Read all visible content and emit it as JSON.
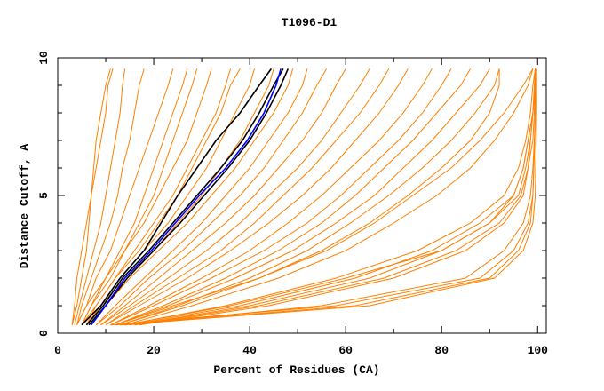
{
  "chart_data": {
    "type": "line",
    "title": "T1096-D1",
    "xlabel": "Percent of Residues (CA)",
    "ylabel": "Distance Cutoff, A",
    "xlim": [
      0,
      101.8
    ],
    "ylim": [
      0,
      10
    ],
    "xticks": [
      "0",
      "20",
      "40",
      "60",
      "80",
      "100"
    ],
    "yticks": [
      "0",
      "5",
      "10"
    ],
    "grid": false,
    "y_levels": [
      0.3,
      1,
      2,
      3,
      4,
      5,
      6,
      7,
      8,
      9,
      9.6
    ],
    "colors": {
      "other": "#ff8000",
      "highlight_black": "#000000",
      "highlight_blue": "#0000ff"
    },
    "series": [
      {
        "group": "other",
        "x": [
          3,
          3.5,
          4,
          5,
          6,
          7,
          8,
          9,
          10,
          10.5,
          11.5
        ]
      },
      {
        "group": "other",
        "x": [
          3.5,
          4.5,
          6,
          7.5,
          9,
          10,
          11,
          12,
          13,
          13.5,
          14
        ]
      },
      {
        "group": "other",
        "x": [
          4,
          5,
          7,
          9,
          11,
          12.5,
          13.5,
          15,
          16,
          17,
          18
        ]
      },
      {
        "group": "other",
        "x": [
          4,
          6,
          8,
          11,
          13,
          15,
          17,
          19,
          21,
          23,
          24
        ]
      },
      {
        "group": "other",
        "x": [
          5,
          7,
          10,
          13,
          16,
          18,
          20,
          22,
          24,
          26,
          27
        ]
      },
      {
        "group": "other",
        "x": [
          5,
          7,
          11,
          14,
          18,
          21,
          24,
          27,
          29,
          31,
          32
        ]
      },
      {
        "group": "other",
        "x": [
          6,
          8,
          12,
          16,
          20,
          24,
          27,
          30,
          33,
          35,
          36
        ]
      },
      {
        "group": "other",
        "x": [
          6,
          9,
          13,
          18,
          23,
          27,
          31,
          34,
          37,
          40,
          41
        ]
      },
      {
        "group": "other",
        "x": [
          6,
          9,
          14,
          20,
          25,
          30,
          34,
          38,
          41,
          44,
          45
        ]
      },
      {
        "group": "other",
        "x": [
          7,
          10,
          15,
          21,
          27,
          32,
          37,
          41,
          45,
          48,
          49
        ]
      },
      {
        "group": "other",
        "x": [
          5,
          8,
          12,
          17,
          21,
          25,
          28,
          31,
          34,
          36,
          38
        ]
      },
      {
        "group": "other",
        "x": [
          4,
          6,
          10,
          14,
          17,
          20,
          22,
          24,
          26,
          28,
          29
        ]
      },
      {
        "group": "other",
        "x": [
          3,
          4,
          5,
          6,
          6.5,
          7,
          7.5,
          8,
          9,
          10,
          11
        ]
      },
      {
        "group": "other",
        "x": [
          8,
          12,
          18,
          24,
          30,
          35,
          40,
          44,
          48,
          51,
          52
        ]
      },
      {
        "group": "other",
        "x": [
          8,
          13,
          19,
          26,
          32,
          38,
          43,
          47,
          51,
          54,
          56
        ]
      },
      {
        "group": "other",
        "x": [
          9,
          14,
          21,
          28,
          35,
          41,
          46,
          51,
          55,
          58,
          60
        ]
      },
      {
        "group": "other",
        "x": [
          9,
          15,
          23,
          31,
          38,
          44,
          50,
          55,
          59,
          63,
          65
        ]
      },
      {
        "group": "other",
        "x": [
          10,
          16,
          25,
          34,
          41,
          47,
          53,
          58,
          63,
          67,
          69
        ]
      },
      {
        "group": "other",
        "x": [
          10,
          17,
          27,
          36,
          44,
          51,
          57,
          62,
          67,
          71,
          73
        ]
      },
      {
        "group": "other",
        "x": [
          11,
          19,
          30,
          40,
          48,
          55,
          61,
          67,
          72,
          76,
          78
        ]
      },
      {
        "group": "other",
        "x": [
          11,
          20,
          32,
          43,
          52,
          59,
          65,
          71,
          76,
          80,
          82
        ]
      },
      {
        "group": "other",
        "x": [
          12,
          22,
          35,
          46,
          55,
          62,
          68,
          74,
          79,
          84,
          86
        ]
      },
      {
        "group": "other",
        "x": [
          12,
          23,
          37,
          49,
          58,
          66,
          72,
          78,
          83,
          88,
          90
        ]
      },
      {
        "group": "other",
        "x": [
          13,
          25,
          40,
          52,
          61,
          69,
          76,
          82,
          87,
          91,
          92
        ]
      },
      {
        "group": "other",
        "x": [
          12,
          24,
          42,
          55,
          65,
          73,
          80,
          86,
          90,
          92,
          92
        ]
      },
      {
        "group": "other",
        "x": [
          13,
          26,
          42,
          56,
          66,
          74,
          82,
          88,
          93,
          97,
          99
        ]
      },
      {
        "group": "other",
        "x": [
          14,
          28,
          46,
          60,
          70,
          79,
          86,
          91,
          95,
          98,
          99
        ]
      },
      {
        "group": "other",
        "x": [
          14,
          35,
          58,
          75,
          86,
          93,
          96,
          97.5,
          98.5,
          99,
          99.5
        ]
      },
      {
        "group": "other",
        "x": [
          15,
          38,
          62,
          78,
          88,
          95,
          97,
          98,
          99,
          99.3,
          99.5
        ]
      },
      {
        "group": "other",
        "x": [
          16,
          40,
          65,
          80,
          90,
          96,
          97.5,
          98.5,
          99,
          99.5,
          99.5
        ]
      },
      {
        "group": "other",
        "x": [
          16,
          42,
          68,
          83,
          92,
          96.5,
          98,
          98.5,
          99,
          99.5,
          99.5
        ]
      },
      {
        "group": "other",
        "x": [
          17,
          44,
          70,
          85,
          93,
          97,
          98,
          99,
          99.3,
          99.5,
          99.5
        ]
      },
      {
        "group": "other",
        "x": [
          14,
          36,
          60,
          80,
          90,
          95,
          97,
          98,
          99,
          99.5,
          99.5
        ]
      },
      {
        "group": "other",
        "x": [
          12,
          62,
          90,
          96,
          98.5,
          99,
          99.2,
          99.4,
          99.5,
          99.6,
          99.6
        ]
      },
      {
        "group": "other",
        "x": [
          11,
          58,
          88,
          95,
          98,
          99,
          99.2,
          99.4,
          99.5,
          99.6,
          99.6
        ]
      },
      {
        "group": "other",
        "x": [
          13,
          65,
          91,
          97,
          99,
          99.5,
          99.6,
          99.7,
          99.8,
          99.8,
          99.8
        ]
      },
      {
        "group": "other",
        "x": [
          14,
          55,
          85,
          93,
          97,
          98.5,
          99,
          99.3,
          99.5,
          99.5,
          99.5
        ]
      },
      {
        "group": "highlight_black",
        "x": [
          5,
          9,
          13,
          18,
          21.5,
          25,
          29,
          33,
          38,
          42,
          44.5
        ]
      },
      {
        "group": "highlight_black",
        "x": [
          6,
          9.5,
          13.5,
          19,
          24,
          29,
          34,
          38.5,
          42,
          45,
          47
        ]
      },
      {
        "group": "highlight_black",
        "x": [
          6.5,
          10,
          14.5,
          20,
          25.5,
          30.5,
          35.5,
          40,
          43.5,
          46.5,
          48
        ]
      },
      {
        "group": "highlight_blue",
        "x": [
          7,
          10,
          14,
          19.5,
          24.5,
          29.5,
          35,
          39.5,
          43,
          45.5,
          46.5
        ]
      }
    ]
  }
}
